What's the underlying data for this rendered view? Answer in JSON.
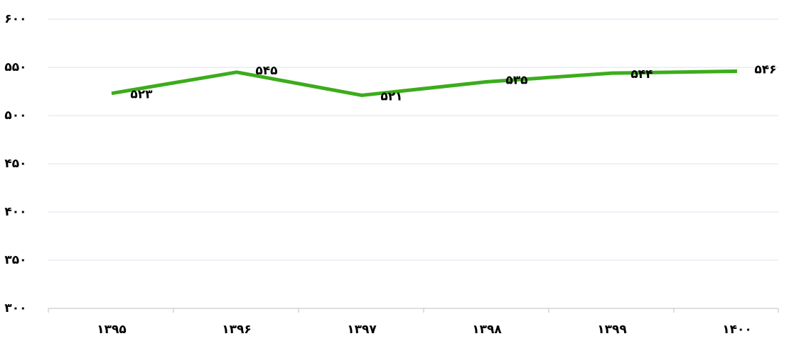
{
  "chart_data": {
    "type": "line",
    "categories": [
      "۱۳۹۵",
      "۱۳۹۶",
      "۱۳۹۷",
      "۱۳۹۸",
      "۱۳۹۹",
      "۱۴۰۰"
    ],
    "series": [
      {
        "color": "#3cac1c",
        "values": [
          523,
          545,
          521,
          535,
          544,
          546
        ],
        "value_labels": [
          "۵۲۳",
          "۵۴۵",
          "۵۲۱",
          "۵۳۵",
          "۵۴۴",
          "۵۴۶"
        ]
      }
    ],
    "ylim": [
      300,
      600
    ],
    "yticks": [
      {
        "value": 300,
        "label": "۳۰۰"
      },
      {
        "value": 350,
        "label": "۳۵۰"
      },
      {
        "value": 400,
        "label": "۴۰۰"
      },
      {
        "value": 450,
        "label": "۴۵۰"
      },
      {
        "value": 500,
        "label": "۵۰۰"
      },
      {
        "value": 550,
        "label": "۵۵۰"
      },
      {
        "value": 600,
        "label": "۶۰۰"
      }
    ],
    "grid": true
  }
}
